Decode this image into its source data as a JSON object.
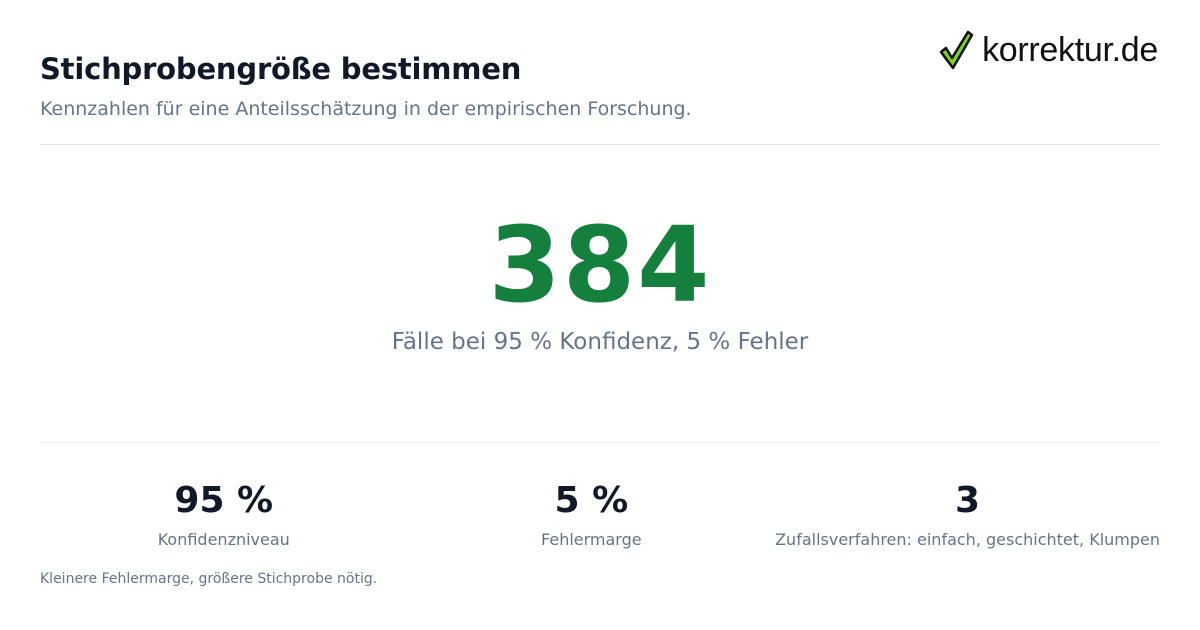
{
  "header": {
    "title": "Stichprobengröße bestimmen",
    "subtitle": "Kennzahlen für eine Anteilsschätzung in der empirischen Forschung."
  },
  "logo": {
    "text": "korrektur.de",
    "icon": "checkmark-icon",
    "check_color": "#7ed321"
  },
  "hero": {
    "value": "384",
    "caption": "Fälle bei 95 % Konfidenz, 5 % Fehler",
    "color": "#15803d"
  },
  "stats": [
    {
      "value": "95 %",
      "label": "Konfidenzniveau"
    },
    {
      "value": "5 %",
      "label": "Fehlermarge"
    },
    {
      "value": "3",
      "label": "Zufallsverfahren: einfach, geschichtet, Klumpen"
    }
  ],
  "footnote": "Kleinere Fehlermarge, größere Stichprobe nötig."
}
